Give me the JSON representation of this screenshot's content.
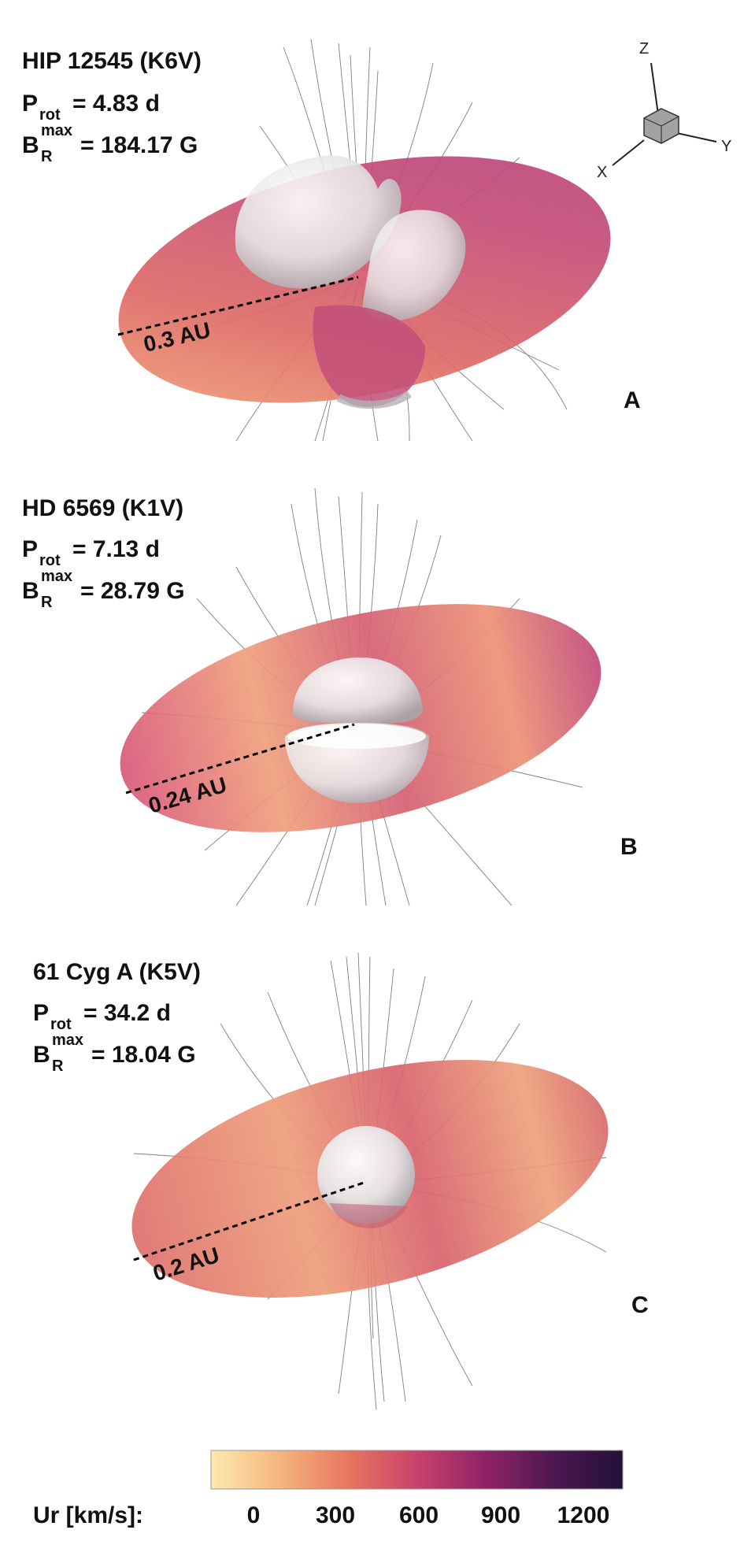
{
  "panels": [
    {
      "letter": "A",
      "star": "HIP 12545 (K6V)",
      "prot": "= 4.83 d",
      "bmax": "= 184.17 G",
      "distance": "0.3 AU"
    },
    {
      "letter": "B",
      "star": "HD 6569 (K1V)",
      "prot": "= 7.13 d",
      "bmax": "= 28.79 G",
      "distance": "0.24 AU"
    },
    {
      "letter": "C",
      "star": "61 Cyg A (K5V)",
      "prot": "= 34.2 d",
      "bmax": "= 18.04 G",
      "distance": "0.2 AU"
    }
  ],
  "symbols": {
    "P": "P",
    "rot": "rot",
    "B": "B",
    "R": "R",
    "max": "max"
  },
  "axes": {
    "z": "Z",
    "y": "Y",
    "x": "X"
  },
  "colorbar": {
    "label": "Ur [km/s]:",
    "ticks": [
      "0",
      "300",
      "600",
      "900",
      "1200"
    ],
    "colors": [
      "#fde9ae",
      "#f5b47e",
      "#e8745f",
      "#c8426b",
      "#8e2266",
      "#4b1750",
      "#22103a"
    ]
  }
}
